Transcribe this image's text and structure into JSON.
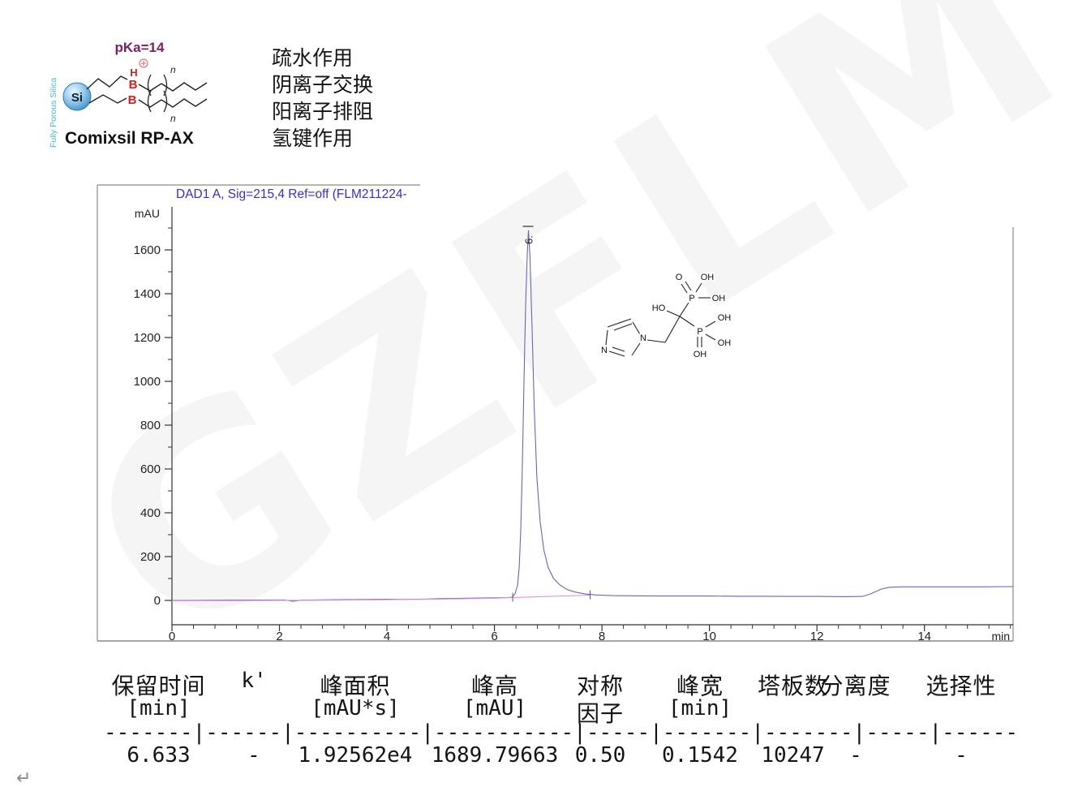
{
  "stationary_phase": {
    "name": "Comixsil RP-AX",
    "pka": "pKa=14",
    "coating": "Fully Porous Silica",
    "si": "Si",
    "h": "H",
    "b_upper": "B",
    "b_lower": "B",
    "n_upper": "n",
    "n_lower": "n"
  },
  "interactions": [
    "疏水作用",
    "阴离子交换",
    "阳离子排阻",
    "氢键作用"
  ],
  "watermark": "GZFLM",
  "chart_data": {
    "type": "line",
    "title": "DAD1 A, Sig=215,4 Ref=off (FLM211224-",
    "ylabel": "mAU",
    "xlabel": "min",
    "xlim": [
      0,
      15.65
    ],
    "ylim": [
      -110,
      1800
    ],
    "x_ticks": [
      0,
      2,
      4,
      6,
      8,
      10,
      12,
      14
    ],
    "x_minor_step": 0.4,
    "y_ticks": [
      0,
      200,
      400,
      600,
      800,
      1000,
      1200,
      1400,
      1600
    ],
    "y_minor_step": 100,
    "grid": false,
    "legend": "none",
    "peak_label": "6.",
    "peak": {
      "retention_time_min": 6.633,
      "height_mAU": 1689.79663,
      "area_mAU_s": 19256.2,
      "symmetry_factor": 0.5,
      "width_min": 0.1542,
      "plates": 10247
    },
    "series": [
      {
        "name": "DAD1 A signal",
        "color": "#6767b2",
        "points": [
          [
            0,
            0
          ],
          [
            0.5,
            0.5
          ],
          [
            1,
            1
          ],
          [
            1.5,
            1.5
          ],
          [
            2.1,
            2
          ],
          [
            2.25,
            -4
          ],
          [
            2.4,
            1
          ],
          [
            3,
            3
          ],
          [
            3.5,
            4
          ],
          [
            4,
            5
          ],
          [
            4.3,
            4.5
          ],
          [
            4.7,
            6
          ],
          [
            5,
            8
          ],
          [
            5.5,
            10
          ],
          [
            6,
            12
          ],
          [
            6.25,
            13
          ],
          [
            6.33,
            15
          ],
          [
            6.38,
            28
          ],
          [
            6.43,
            70
          ],
          [
            6.46,
            150
          ],
          [
            6.49,
            320
          ],
          [
            6.52,
            620
          ],
          [
            6.55,
            1000
          ],
          [
            6.58,
            1350
          ],
          [
            6.61,
            1580
          ],
          [
            6.633,
            1689.8
          ],
          [
            6.66,
            1575
          ],
          [
            6.7,
            1240
          ],
          [
            6.74,
            880
          ],
          [
            6.79,
            560
          ],
          [
            6.85,
            360
          ],
          [
            6.92,
            230
          ],
          [
            7,
            150
          ],
          [
            7.1,
            100
          ],
          [
            7.22,
            70
          ],
          [
            7.35,
            50
          ],
          [
            7.5,
            38
          ],
          [
            7.7,
            29
          ],
          [
            7.9,
            25
          ],
          [
            8.2,
            22
          ],
          [
            8.6,
            21
          ],
          [
            9,
            20
          ],
          [
            9.5,
            20
          ],
          [
            10,
            20
          ],
          [
            10.5,
            19
          ],
          [
            11,
            19
          ],
          [
            11.5,
            18
          ],
          [
            12,
            18
          ],
          [
            12.5,
            17
          ],
          [
            12.85,
            18
          ],
          [
            13,
            30
          ],
          [
            13.2,
            52
          ],
          [
            13.35,
            60
          ],
          [
            13.6,
            62
          ],
          [
            14,
            62
          ],
          [
            14.5,
            62
          ],
          [
            15,
            62
          ],
          [
            15.65,
            63
          ]
        ]
      },
      {
        "name": "integration baseline",
        "color": "#e18fe0",
        "points": [
          [
            0,
            -1.5
          ],
          [
            1,
            -1
          ],
          [
            2,
            0
          ],
          [
            3,
            1
          ],
          [
            4,
            3
          ],
          [
            5,
            6
          ],
          [
            6,
            10
          ],
          [
            6.34,
            13
          ],
          [
            7.78,
            24
          ]
        ]
      }
    ],
    "integration_marks": [
      {
        "t": 6.34,
        "v": 13
      },
      {
        "t": 7.78,
        "v": 24
      }
    ]
  },
  "molecule": {
    "name": "zoledronic acid",
    "atoms": [
      "O",
      "OH",
      "OH",
      "HO",
      "P",
      "OH",
      "P",
      "OH",
      "OH",
      "O",
      "N",
      "N"
    ]
  },
  "table": {
    "headers": [
      {
        "line1": "保留时间",
        "line2": "[min]"
      },
      {
        "line1": "k'",
        "line2": ""
      },
      {
        "line1": "峰面积",
        "line2": "[mAU*s]"
      },
      {
        "line1": "峰高",
        "line2": "[mAU]"
      },
      {
        "line1": "对称",
        "line2": "因子"
      },
      {
        "line1": "峰宽",
        "line2": "[min]"
      },
      {
        "line1": "塔板数",
        "line2": ""
      },
      {
        "line1": "分离度",
        "line2": ""
      },
      {
        "line1": "选择性",
        "line2": ""
      }
    ],
    "separator": "-------|------|----------|-----------|-----|-------|-------|-----|------",
    "rows": [
      [
        "6.633",
        "-",
        "1.92562e4",
        "1689.79663",
        "0.50",
        "0.1542",
        "10247",
        "-",
        "-"
      ]
    ]
  },
  "footer_mark": "↵"
}
